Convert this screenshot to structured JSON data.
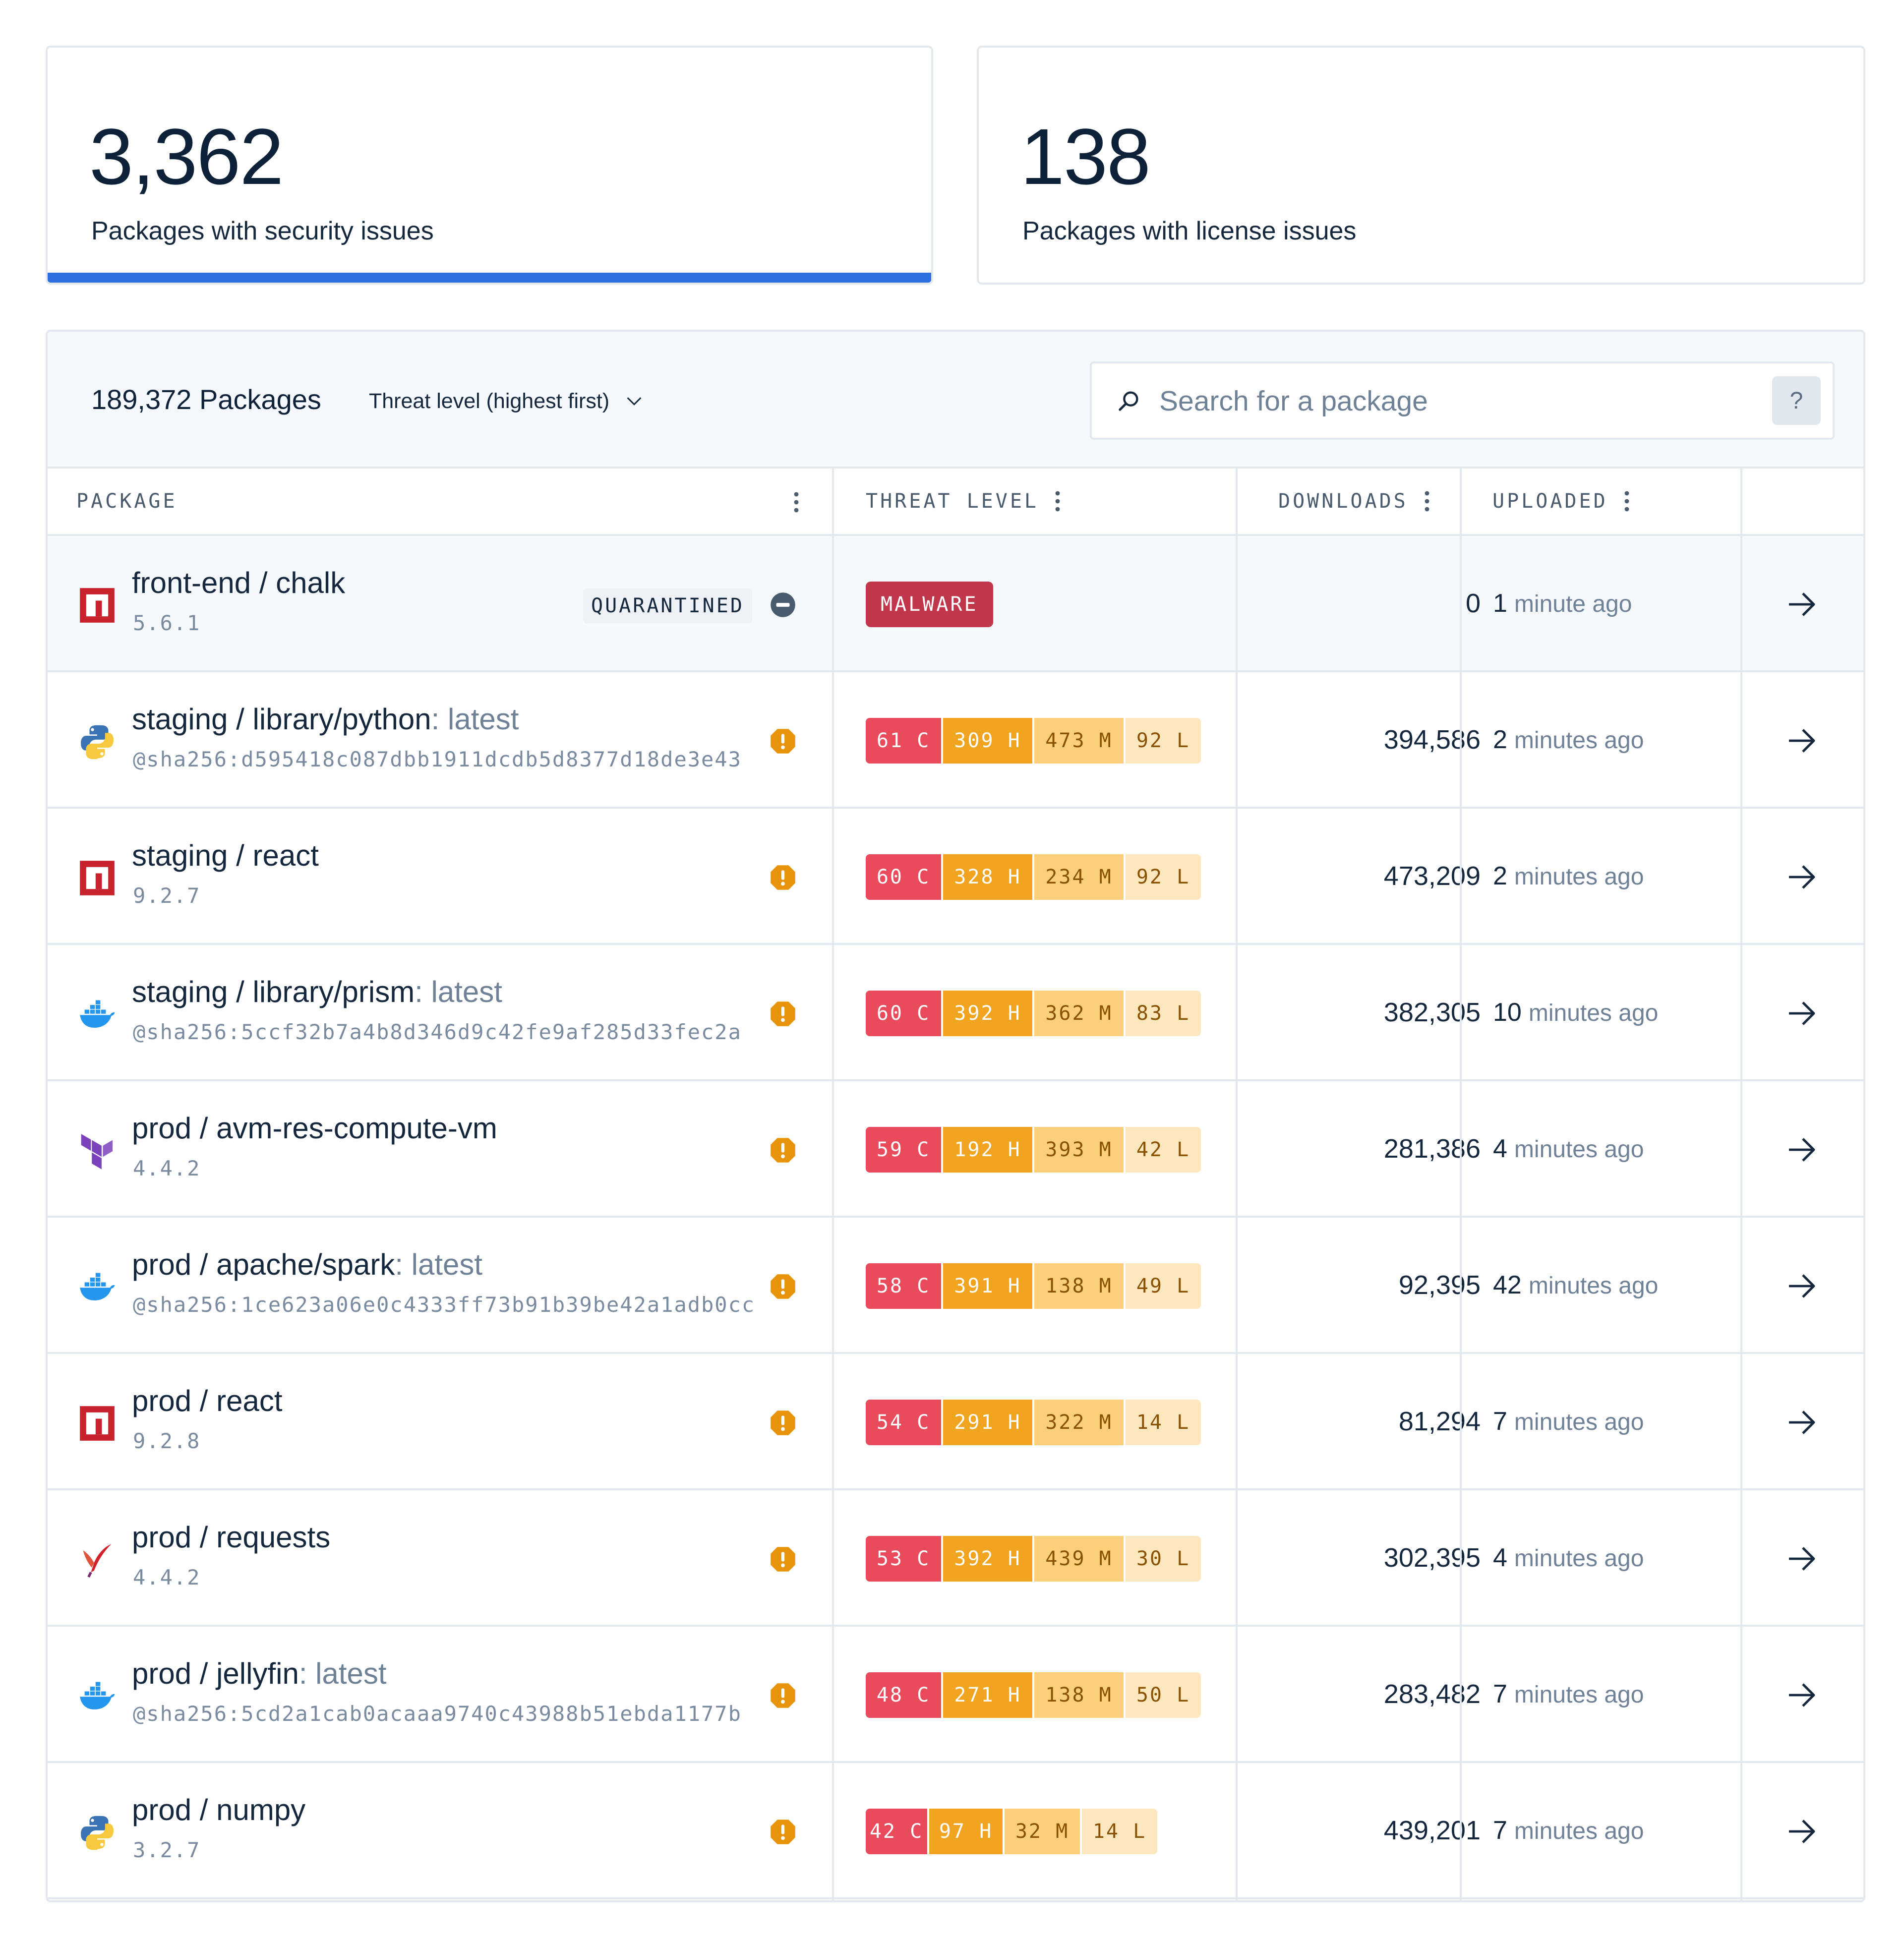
{
  "stats": {
    "security": {
      "value": "3,362",
      "label": "Packages with security issues"
    },
    "license": {
      "value": "138",
      "label": "Packages with license issues"
    }
  },
  "toolbar": {
    "package_count": "189,372 Packages",
    "sort_label": "Threat level (highest first)",
    "search_placeholder": "Search for a package",
    "help_label": "?"
  },
  "columns": {
    "package": "PACKAGE",
    "threat": "THREAT LEVEL",
    "downloads": "DOWNLOADS",
    "uploaded": "UPLOADED"
  },
  "colors": {
    "accent": "#2d6ee0",
    "critical": "#e94b5c",
    "high": "#f0a420",
    "medium": "#fcd07a",
    "low": "#fde7bf",
    "malware": "#c0364b",
    "warning": "#e8930c"
  },
  "rows": [
    {
      "icon": "npm-icon",
      "name": "front-end / chalk",
      "tag": "",
      "sub": "5.6.1",
      "badge": "QUARANTINED",
      "status_icon": "quarantine-icon",
      "malware": "MALWARE",
      "threat": null,
      "downloads": "0",
      "uploaded_num": "1",
      "uploaded_unit": "minute ago"
    },
    {
      "icon": "python-icon",
      "name": "staging / library/python",
      "tag": ": latest",
      "sub": "@sha256:d595418c087dbb1911dcdb5d8377d18de3e43",
      "badge": "",
      "status_icon": "warning-icon",
      "malware": "",
      "threat": [
        "61 C",
        "309 H",
        "473 M",
        "92 L"
      ],
      "downloads": "394,586",
      "uploaded_num": "2",
      "uploaded_unit": "minutes ago"
    },
    {
      "icon": "npm-icon",
      "name": "staging / react",
      "tag": "",
      "sub": "9.2.7",
      "badge": "",
      "status_icon": "warning-icon",
      "malware": "",
      "threat": [
        "60 C",
        "328 H",
        "234 M",
        "92 L"
      ],
      "downloads": "473,209",
      "uploaded_num": "2",
      "uploaded_unit": "minutes ago"
    },
    {
      "icon": "docker-icon",
      "name": "staging / library/prism",
      "tag": ": latest",
      "sub": "@sha256:5ccf32b7a4b8d346d9c42fe9af285d33fec2a",
      "badge": "",
      "status_icon": "warning-icon",
      "malware": "",
      "threat": [
        "60 C",
        "392 H",
        "362 M",
        "83 L"
      ],
      "downloads": "382,305",
      "uploaded_num": "10",
      "uploaded_unit": "minutes ago"
    },
    {
      "icon": "terraform-icon",
      "name": "prod / avm-res-compute-vm",
      "tag": "",
      "sub": "4.4.2",
      "badge": "",
      "status_icon": "warning-icon",
      "malware": "",
      "threat": [
        "59 C",
        "192 H",
        "393 M",
        "42 L"
      ],
      "downloads": "281,386",
      "uploaded_num": "4",
      "uploaded_unit": "minutes ago"
    },
    {
      "icon": "docker-icon",
      "name": "prod / apache/spark",
      "tag": ": latest",
      "sub": "@sha256:1ce623a06e0c4333ff73b91b39be42a1adb0cc",
      "badge": "",
      "status_icon": "warning-icon",
      "malware": "",
      "threat": [
        "58 C",
        "391 H",
        "138 M",
        "49 L"
      ],
      "downloads": "92,395",
      "uploaded_num": "42",
      "uploaded_unit": "minutes ago"
    },
    {
      "icon": "npm-icon",
      "name": "prod / react",
      "tag": "",
      "sub": "9.2.8",
      "badge": "",
      "status_icon": "warning-icon",
      "malware": "",
      "threat": [
        "54 C",
        "291 H",
        "322 M",
        "14 L"
      ],
      "downloads": "81,294",
      "uploaded_num": "7",
      "uploaded_unit": "minutes ago"
    },
    {
      "icon": "apache-feather-icon",
      "name": "prod / requests",
      "tag": "",
      "sub": "4.4.2",
      "badge": "",
      "status_icon": "warning-icon",
      "malware": "",
      "threat": [
        "53 C",
        "392 H",
        "439 M",
        "30 L"
      ],
      "downloads": "302,395",
      "uploaded_num": "4",
      "uploaded_unit": "minutes ago"
    },
    {
      "icon": "docker-icon",
      "name": "prod / jellyfin",
      "tag": ": latest",
      "sub": "@sha256:5cd2a1cab0acaaa9740c43988b51ebda1177b",
      "badge": "",
      "status_icon": "warning-icon",
      "malware": "",
      "threat": [
        "48 C",
        "271 H",
        "138 M",
        "50 L"
      ],
      "downloads": "283,482",
      "uploaded_num": "7",
      "uploaded_unit": "minutes ago"
    },
    {
      "icon": "python-icon",
      "name": "prod / numpy",
      "tag": "",
      "sub": "3.2.7",
      "badge": "",
      "status_icon": "warning-icon",
      "malware": "",
      "threat": [
        "42 C",
        "97 H",
        "32 M",
        "14 L"
      ],
      "downloads": "439,201",
      "uploaded_num": "7",
      "uploaded_unit": "minutes ago"
    }
  ]
}
